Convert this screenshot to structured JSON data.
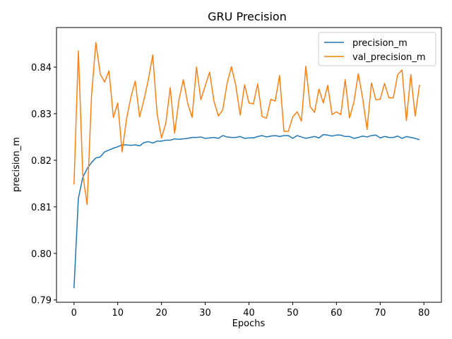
{
  "chart_data": {
    "type": "line",
    "title": "GRU Precision",
    "xlabel": "Epochs",
    "ylabel": "precision_m",
    "xlim": [
      -4,
      84
    ],
    "ylim": [
      0.7895,
      0.8485
    ],
    "xticks": [
      0,
      10,
      20,
      30,
      40,
      50,
      60,
      70,
      80
    ],
    "yticks": [
      0.79,
      0.8,
      0.81,
      0.82,
      0.83,
      0.84
    ],
    "ytick_labels": [
      "0.79",
      "0.80",
      "0.81",
      "0.82",
      "0.83",
      "0.84"
    ],
    "grid": false,
    "legend_position": "upper right",
    "series": [
      {
        "name": "precision_m",
        "color": "#1f77b4",
        "x": [
          0,
          1,
          2,
          3,
          4,
          5,
          6,
          7,
          8,
          9,
          10,
          11,
          12,
          13,
          14,
          15,
          16,
          17,
          18,
          19,
          20,
          21,
          22,
          23,
          24,
          25,
          26,
          27,
          28,
          29,
          30,
          31,
          32,
          33,
          34,
          35,
          36,
          37,
          38,
          39,
          40,
          41,
          42,
          43,
          44,
          45,
          46,
          47,
          48,
          49,
          50,
          51,
          52,
          53,
          54,
          55,
          56,
          57,
          58,
          59,
          60,
          61,
          62,
          63,
          64,
          65,
          66,
          67,
          68,
          69,
          70,
          71,
          72,
          73,
          74,
          75,
          76,
          77,
          78,
          79
        ],
        "y": [
          0.7925,
          0.8118,
          0.8163,
          0.8182,
          0.8195,
          0.8205,
          0.8207,
          0.8218,
          0.8222,
          0.8226,
          0.8229,
          0.8233,
          0.8233,
          0.8232,
          0.8233,
          0.8231,
          0.8238,
          0.824,
          0.8237,
          0.8241,
          0.8241,
          0.8243,
          0.8243,
          0.8246,
          0.8245,
          0.8246,
          0.8247,
          0.8249,
          0.8249,
          0.825,
          0.8247,
          0.8248,
          0.8249,
          0.8247,
          0.8253,
          0.825,
          0.8249,
          0.8249,
          0.8251,
          0.8247,
          0.8248,
          0.8248,
          0.8251,
          0.8253,
          0.825,
          0.8252,
          0.8253,
          0.8251,
          0.8253,
          0.8253,
          0.8247,
          0.8253,
          0.825,
          0.8247,
          0.8249,
          0.8251,
          0.8248,
          0.8255,
          0.8254,
          0.8252,
          0.8254,
          0.8254,
          0.8251,
          0.8251,
          0.8247,
          0.8249,
          0.8252,
          0.825,
          0.8253,
          0.8254,
          0.8248,
          0.8251,
          0.8249,
          0.8249,
          0.8252,
          0.8247,
          0.8251,
          0.8249,
          0.8247,
          0.8244
        ]
      },
      {
        "name": "val_precision_m",
        "color": "#ff7f0e",
        "x": [
          0,
          1,
          2,
          3,
          4,
          5,
          6,
          7,
          8,
          9,
          10,
          11,
          12,
          13,
          14,
          15,
          16,
          17,
          18,
          19,
          20,
          21,
          22,
          23,
          24,
          25,
          26,
          27,
          28,
          29,
          30,
          31,
          32,
          33,
          34,
          35,
          36,
          37,
          38,
          39,
          40,
          41,
          42,
          43,
          44,
          45,
          46,
          47,
          48,
          49,
          50,
          51,
          52,
          53,
          54,
          55,
          56,
          57,
          58,
          59,
          60,
          61,
          62,
          63,
          64,
          65,
          66,
          67,
          68,
          69,
          70,
          71,
          72,
          73,
          74,
          75,
          76,
          77,
          78,
          79
        ],
        "y": [
          0.8148,
          0.8435,
          0.817,
          0.8105,
          0.8338,
          0.8453,
          0.8385,
          0.8368,
          0.8392,
          0.8292,
          0.8323,
          0.8218,
          0.8288,
          0.8335,
          0.837,
          0.8293,
          0.833,
          0.8373,
          0.8426,
          0.83,
          0.8248,
          0.828,
          0.8356,
          0.8258,
          0.833,
          0.8373,
          0.8322,
          0.8292,
          0.84,
          0.833,
          0.836,
          0.8389,
          0.8327,
          0.8295,
          0.8308,
          0.8365,
          0.8401,
          0.836,
          0.8297,
          0.8362,
          0.8323,
          0.8321,
          0.8364,
          0.8294,
          0.829,
          0.8331,
          0.8327,
          0.8382,
          0.8262,
          0.8262,
          0.8293,
          0.8304,
          0.8284,
          0.8402,
          0.8315,
          0.8303,
          0.8353,
          0.8323,
          0.8361,
          0.8298,
          0.8304,
          0.8298,
          0.8373,
          0.8291,
          0.8325,
          0.8386,
          0.8333,
          0.8266,
          0.8366,
          0.833,
          0.8331,
          0.8365,
          0.8334,
          0.8334,
          0.8384,
          0.8394,
          0.8285,
          0.8384,
          0.8295,
          0.8362
        ]
      }
    ]
  }
}
